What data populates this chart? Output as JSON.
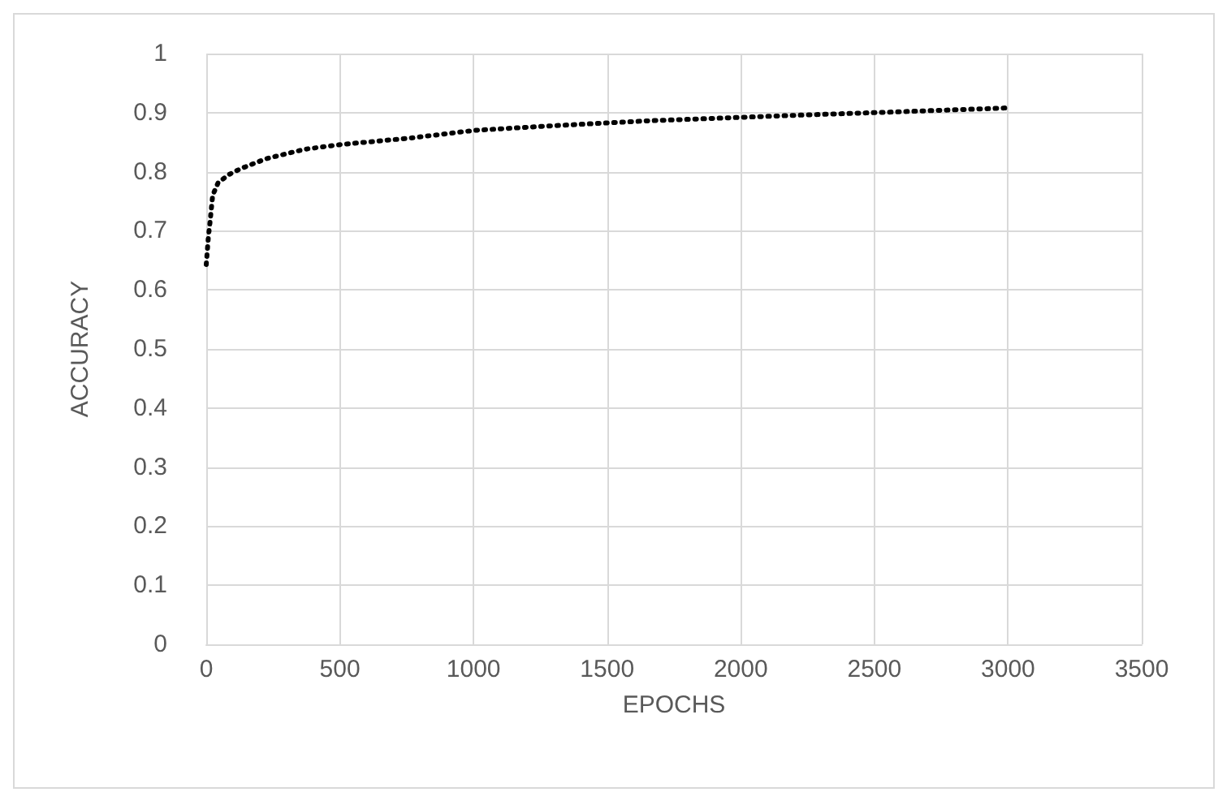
{
  "chart_data": {
    "type": "line",
    "xlabel": "EPOCHS",
    "ylabel": "ACCURACY",
    "x": [
      0,
      8,
      14,
      24,
      44,
      84,
      128,
      224,
      368,
      504,
      764,
      1004,
      1304,
      1644,
      2000,
      2235,
      2500,
      3000
    ],
    "series": [
      {
        "color": "#000000",
        "values": [
          0.643,
          0.69,
          0.714,
          0.76,
          0.781,
          0.795,
          0.805,
          0.822,
          0.838,
          0.846,
          0.857,
          0.87,
          0.878,
          0.886,
          0.892,
          0.896,
          0.9,
          0.908
        ]
      }
    ],
    "xlim": [
      0,
      3500
    ],
    "xticks": [
      0,
      500,
      1000,
      1500,
      2000,
      2500,
      3000,
      3500
    ],
    "ylim": [
      0,
      1
    ],
    "yticks": [
      0,
      0.1,
      0.2,
      0.3,
      0.4,
      0.5,
      0.6,
      0.7,
      0.8,
      0.9,
      1
    ],
    "grid": true,
    "marker": "none",
    "line_style": "dotted"
  }
}
